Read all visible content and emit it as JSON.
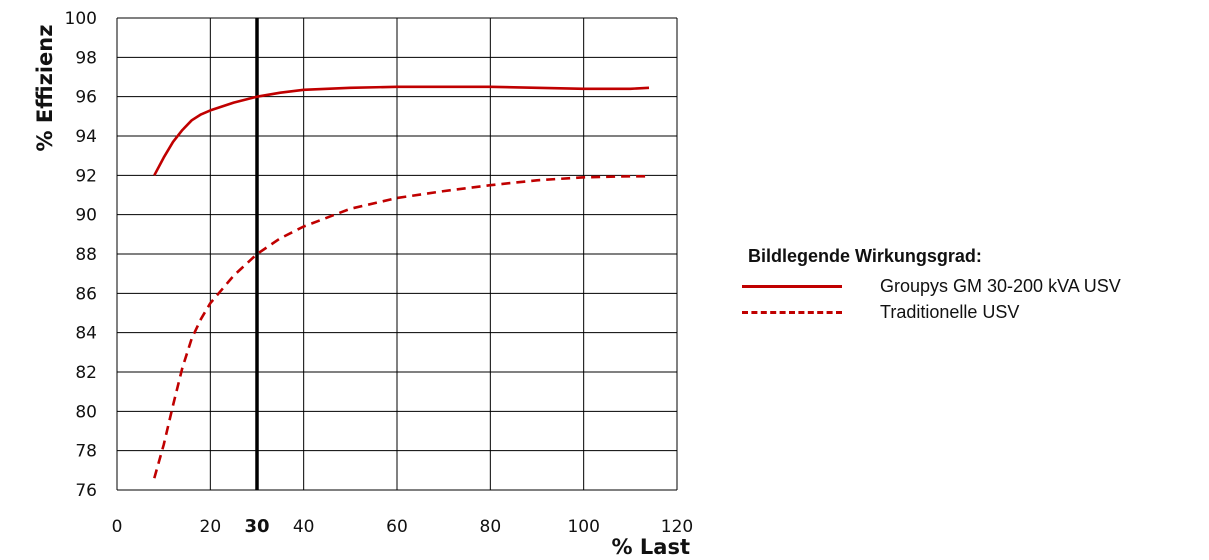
{
  "chart_data": {
    "type": "line",
    "xlabel": "% Last",
    "ylabel": "% Effizienz",
    "xlim": [
      0,
      120
    ],
    "ylim": [
      76,
      100
    ],
    "x_ticks": [
      "0",
      "20",
      "30",
      "40",
      "60",
      "80",
      "100",
      "120"
    ],
    "y_ticks": [
      "76",
      "78",
      "80",
      "82",
      "84",
      "86",
      "88",
      "90",
      "92",
      "94",
      "96",
      "98",
      "100"
    ],
    "grid": true,
    "highlight_x": 30,
    "legend_title": "Bildlegende Wirkungsgrad:",
    "legend_position": "right",
    "color": "#c00000",
    "series": [
      {
        "name": "Groupys GM 30-200 kVA USV",
        "style": "solid",
        "x": [
          8,
          10,
          12,
          14,
          16,
          18,
          20,
          25,
          30,
          35,
          40,
          50,
          60,
          70,
          80,
          90,
          100,
          110,
          114
        ],
        "y": [
          92.0,
          92.9,
          93.7,
          94.3,
          94.8,
          95.1,
          95.3,
          95.7,
          96.0,
          96.2,
          96.35,
          96.45,
          96.5,
          96.5,
          96.5,
          96.45,
          96.4,
          96.4,
          96.45
        ]
      },
      {
        "name": "Traditionelle USV",
        "style": "dashed",
        "x": [
          8,
          10,
          12,
          14,
          16,
          18,
          20,
          25,
          30,
          35,
          40,
          50,
          60,
          70,
          80,
          90,
          100,
          110,
          114
        ],
        "y": [
          76.6,
          78.3,
          80.3,
          82.2,
          83.7,
          84.7,
          85.5,
          86.9,
          88.0,
          88.8,
          89.4,
          90.3,
          90.85,
          91.2,
          91.5,
          91.75,
          91.9,
          91.95,
          91.95
        ]
      }
    ]
  }
}
